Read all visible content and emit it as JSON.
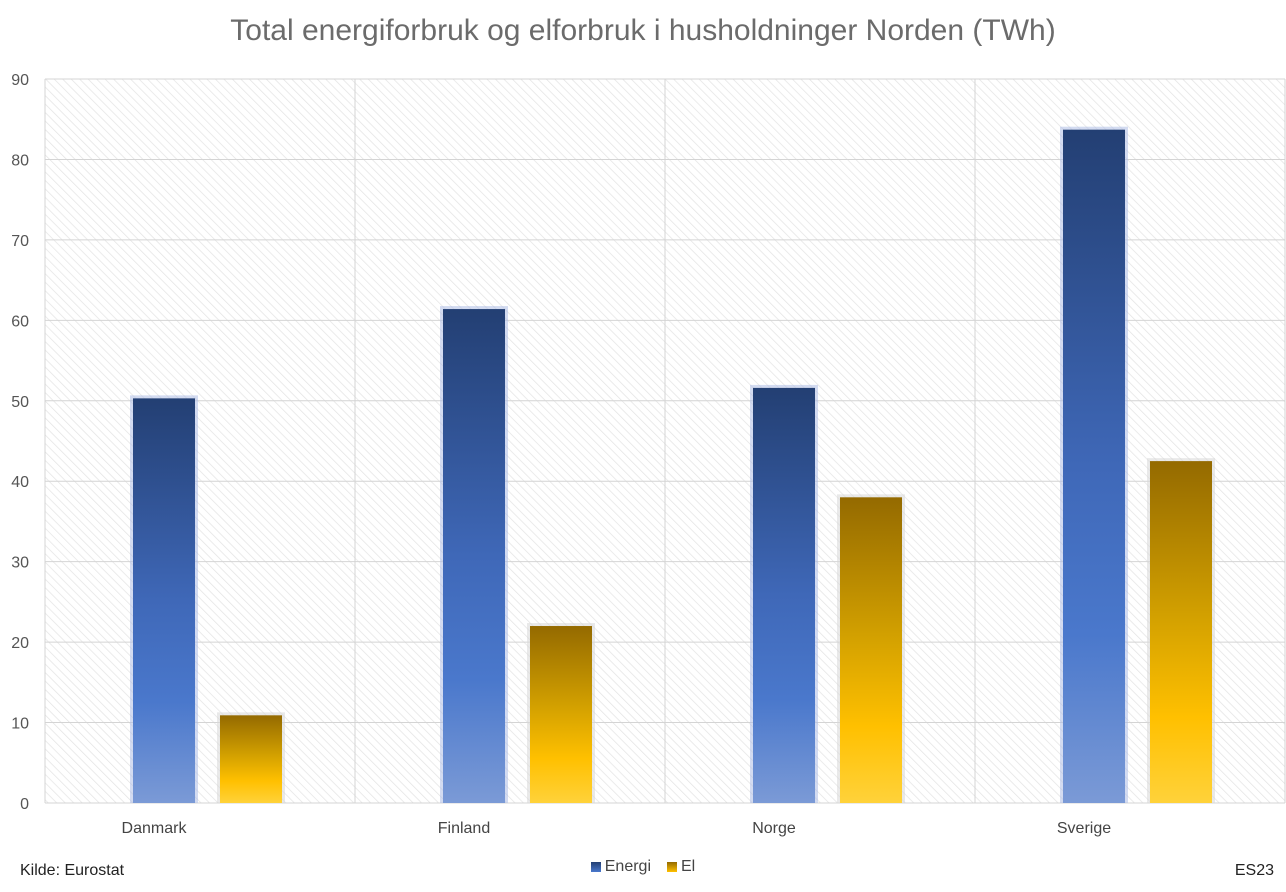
{
  "chart_data": {
    "type": "bar",
    "title": "Total energiforbruk og elforbruk i husholdninger Norden (TWh)",
    "categories": [
      "Danmark",
      "Finland",
      "Norge",
      "Sverige"
    ],
    "series": [
      {
        "name": "Energi",
        "values": [
          50.3,
          61.4,
          51.6,
          83.7
        ],
        "color": "#4472c4"
      },
      {
        "name": "El",
        "values": [
          10.9,
          22.0,
          38.0,
          42.5
        ],
        "color": "#ffc000"
      }
    ],
    "ylim": [
      0,
      90
    ],
    "yticks": [
      0,
      10,
      20,
      30,
      40,
      50,
      60,
      70,
      80,
      90
    ],
    "xlabel": "",
    "ylabel": "",
    "grid": true,
    "legend": "bottom-center"
  },
  "footer": {
    "source": "Kilde: Eurostat",
    "credit": "ES23"
  }
}
